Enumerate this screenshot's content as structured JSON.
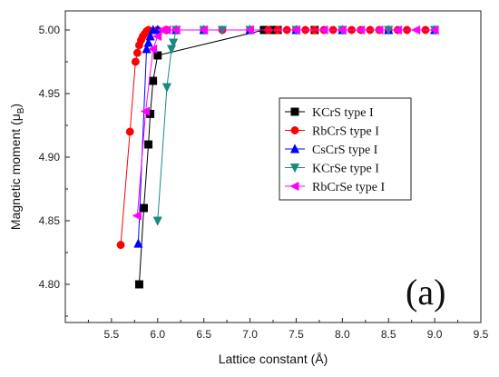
{
  "chart_data": {
    "type": "scatter",
    "xlabel": "Lattice constant (Å)",
    "ylabel_main": "Magnetic moment (μ",
    "ylabel_sub": "B",
    "ylabel_close": ")",
    "xlim": [
      5.0,
      9.5
    ],
    "ylim": [
      4.77,
      5.015
    ],
    "x_ticks": [
      "5.5",
      "6.0",
      "6.5",
      "7.0",
      "7.5",
      "8.0",
      "8.5",
      "9.0",
      "9.5"
    ],
    "y_ticks": [
      "4.80",
      "4.85",
      "4.90",
      "4.95",
      "5.00"
    ],
    "panel_label": "(a)",
    "legend_position": "right-middle",
    "series": [
      {
        "name": "KCrS type I",
        "color": "#000000",
        "marker": "square",
        "x": [
          5.8,
          5.85,
          5.9,
          5.92,
          5.95,
          6.0,
          7.15,
          7.25,
          7.3,
          7.7
        ],
        "y": [
          4.8,
          4.86,
          4.91,
          4.934,
          4.96,
          4.98,
          5.0,
          5.0,
          5.0,
          5.0
        ]
      },
      {
        "name": "RbCrS type I",
        "color": "#ff0000",
        "marker": "circle",
        "x": [
          5.6,
          5.7,
          5.76,
          5.78,
          5.8,
          5.82,
          5.84,
          5.86,
          5.88,
          5.9,
          6.0,
          6.1,
          6.2,
          6.5,
          6.7,
          7.0,
          7.2,
          7.3,
          7.4,
          7.5,
          7.6,
          7.7,
          7.8,
          7.9,
          8.0,
          8.1,
          8.2,
          8.3,
          8.4,
          8.5,
          8.6,
          8.7,
          8.9
        ],
        "y": [
          4.831,
          4.92,
          4.975,
          4.982,
          4.988,
          4.992,
          4.995,
          4.997,
          4.999,
          5.0,
          5.0,
          5.0,
          5.0,
          5.0,
          5.0,
          5.0,
          5.0,
          5.0,
          5.0,
          5.0,
          5.0,
          5.0,
          5.0,
          5.0,
          5.0,
          5.0,
          5.0,
          5.0,
          5.0,
          5.0,
          5.0,
          5.0,
          5.0
        ]
      },
      {
        "name": "CsCrS type I",
        "color": "#0000ff",
        "marker": "triangle-up",
        "x": [
          5.79,
          5.88,
          5.9,
          5.92,
          5.95,
          6.0,
          6.2,
          6.5,
          7.0,
          7.5,
          8.0,
          8.5,
          9.0
        ],
        "y": [
          4.832,
          4.985,
          4.99,
          4.995,
          5.0,
          5.0,
          5.0,
          5.0,
          5.0,
          5.0,
          5.0,
          5.0,
          5.0
        ]
      },
      {
        "name": "KCrSe type I",
        "color": "#1a8a80",
        "marker": "triangle-down",
        "x": [
          6.0,
          6.1,
          6.15,
          6.17,
          6.2,
          6.5,
          6.7,
          7.0,
          7.5,
          8.0,
          8.5,
          9.0
        ],
        "y": [
          4.85,
          4.955,
          4.985,
          4.99,
          5.0,
          5.0,
          5.0,
          5.0,
          5.0,
          5.0,
          5.0,
          5.0
        ]
      },
      {
        "name": "RbCrSe type I",
        "color": "#ff00ff",
        "marker": "triangle-left",
        "x": [
          5.78,
          5.87,
          5.95,
          6.0,
          6.05,
          6.1,
          6.2,
          6.5,
          7.0,
          7.5,
          7.8,
          8.0,
          8.2,
          8.4,
          8.6,
          8.8,
          9.0
        ],
        "y": [
          4.854,
          4.936,
          4.985,
          4.995,
          5.0,
          5.0,
          5.0,
          5.0,
          5.0,
          5.0,
          5.0,
          5.0,
          5.0,
          5.0,
          5.0,
          5.0,
          5.0
        ]
      }
    ]
  }
}
